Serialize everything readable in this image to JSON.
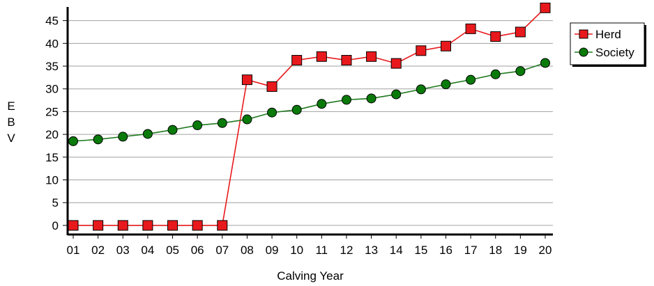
{
  "chart_data": {
    "type": "line",
    "title": "",
    "xlabel": "Calving Year",
    "ylabel": "EBV",
    "categories": [
      "01",
      "02",
      "03",
      "04",
      "05",
      "06",
      "07",
      "08",
      "09",
      "10",
      "11",
      "12",
      "13",
      "14",
      "15",
      "16",
      "17",
      "18",
      "19",
      "20"
    ],
    "ylim": [
      -2,
      48
    ],
    "yticks": [
      0,
      5,
      10,
      15,
      20,
      25,
      30,
      35,
      40,
      45
    ],
    "grid": "horizontal",
    "legend_position": "top-right",
    "series": [
      {
        "name": "Herd",
        "marker": "square",
        "line_color": "#e8191c",
        "marker_color": "#e8191c",
        "values": [
          0,
          0,
          0,
          0,
          0,
          0,
          0,
          32,
          30.5,
          36.3,
          37.1,
          36.3,
          37.1,
          35.6,
          38.4,
          39.4,
          43.2,
          41.5,
          42.5,
          47.8
        ]
      },
      {
        "name": "Society",
        "marker": "circle",
        "line_color": "#1f7a1f",
        "marker_color": "#0a7a0a",
        "values": [
          18.5,
          18.9,
          19.5,
          20.1,
          21.0,
          22.0,
          22.5,
          23.3,
          24.8,
          25.4,
          26.7,
          27.6,
          27.9,
          28.8,
          29.9,
          31.0,
          32.0,
          33.2,
          33.9,
          35.7
        ]
      }
    ]
  }
}
